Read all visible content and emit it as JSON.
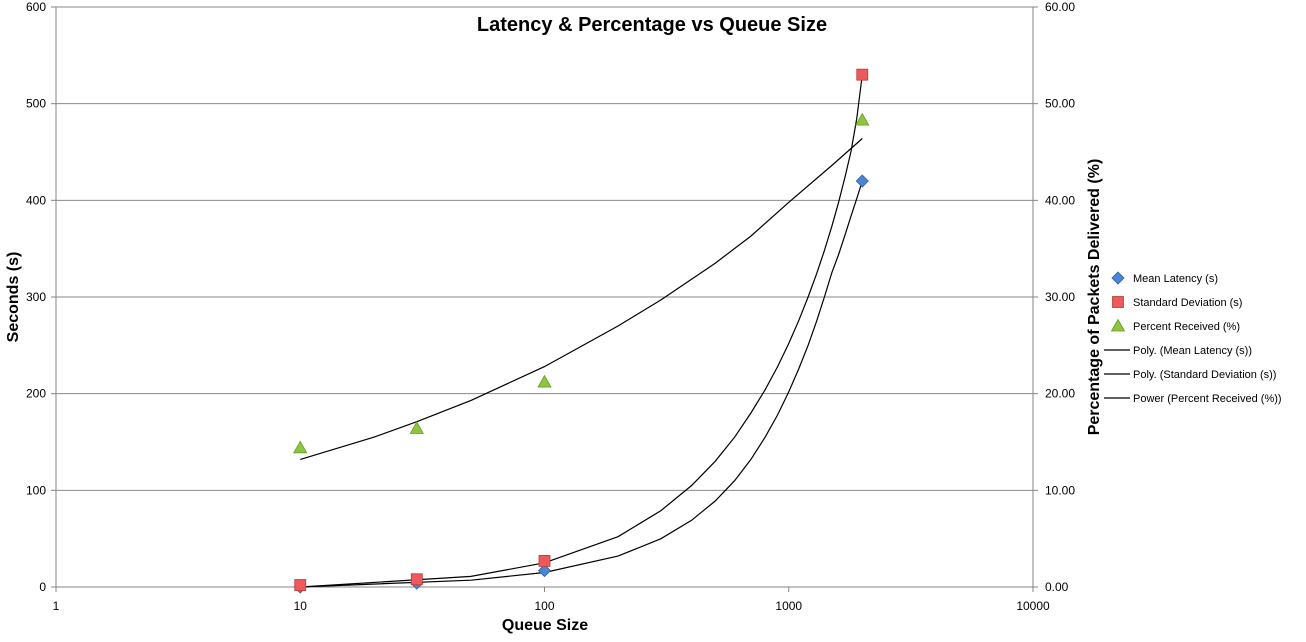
{
  "chart_data": {
    "type": "scatter",
    "title": "Latency & Percentage vs Queue Size",
    "xlabel": "Queue Size",
    "ylabel_left": "Seconds (s)",
    "ylabel_right": "Percentage of Packets Delivered (%)",
    "x_scale": "log",
    "xlim": [
      1,
      10000
    ],
    "x_ticks": [
      "1",
      "10",
      "100",
      "1000",
      "10000"
    ],
    "ylim_left": [
      0,
      600
    ],
    "y_ticks_left": [
      "0",
      "100",
      "200",
      "300",
      "400",
      "500",
      "600"
    ],
    "ylim_right": [
      0,
      60
    ],
    "y_ticks_right": [
      "0.00",
      "10.00",
      "20.00",
      "30.00",
      "40.00",
      "50.00",
      "60.00"
    ],
    "grid": true,
    "legend_position": "right",
    "series": [
      {
        "name": "Mean Latency (s)",
        "axis": "left",
        "marker": "diamond",
        "color": "#4a86d8",
        "x": [
          10,
          30,
          100,
          2000
        ],
        "y": [
          0,
          4,
          17,
          420
        ]
      },
      {
        "name": "Standard Deviation (s)",
        "axis": "left",
        "marker": "square",
        "color": "#ee5a5a",
        "x": [
          10,
          30,
          100,
          2000
        ],
        "y": [
          2,
          8,
          27,
          530
        ]
      },
      {
        "name": "Percent Received (%)",
        "axis": "right",
        "marker": "triangle",
        "color": "#8cc63f",
        "x": [
          10,
          30,
          100,
          2000
        ],
        "y": [
          14.4,
          16.4,
          21.2,
          48.3
        ]
      }
    ],
    "trendlines": [
      {
        "name": "Poly. (Mean Latency (s))",
        "axis": "left",
        "x": [
          10,
          50,
          100,
          200,
          300,
          400,
          500,
          600,
          700,
          800,
          900,
          1000,
          1100,
          1200,
          1300,
          1400,
          1500,
          1600,
          1700,
          1800,
          1900,
          2000
        ],
        "y": [
          0,
          7,
          15,
          32,
          50,
          69,
          89,
          110,
          132,
          155,
          178,
          202,
          226,
          250,
          275,
          300,
          325,
          344,
          364,
          384,
          402,
          420
        ]
      },
      {
        "name": "Poly. (Standard Deviation (s))",
        "axis": "left",
        "x": [
          10,
          50,
          100,
          200,
          300,
          400,
          500,
          600,
          700,
          800,
          900,
          1000,
          1100,
          1200,
          1300,
          1400,
          1500,
          1600,
          1700,
          1800,
          1900,
          2000
        ],
        "y": [
          0,
          11,
          25,
          52,
          79,
          105,
          130,
          155,
          180,
          204,
          228,
          252,
          276,
          300,
          324,
          348,
          373,
          398,
          424,
          451,
          485,
          530
        ]
      },
      {
        "name": "Power (Percent Received (%))",
        "axis": "right",
        "x": [
          10,
          20,
          30,
          50,
          100,
          200,
          300,
          500,
          700,
          1000,
          1500,
          2000
        ],
        "y": [
          13.2,
          15.5,
          17.1,
          19.3,
          22.8,
          27.0,
          29.7,
          33.5,
          36.3,
          39.8,
          43.6,
          46.4
        ]
      }
    ]
  }
}
